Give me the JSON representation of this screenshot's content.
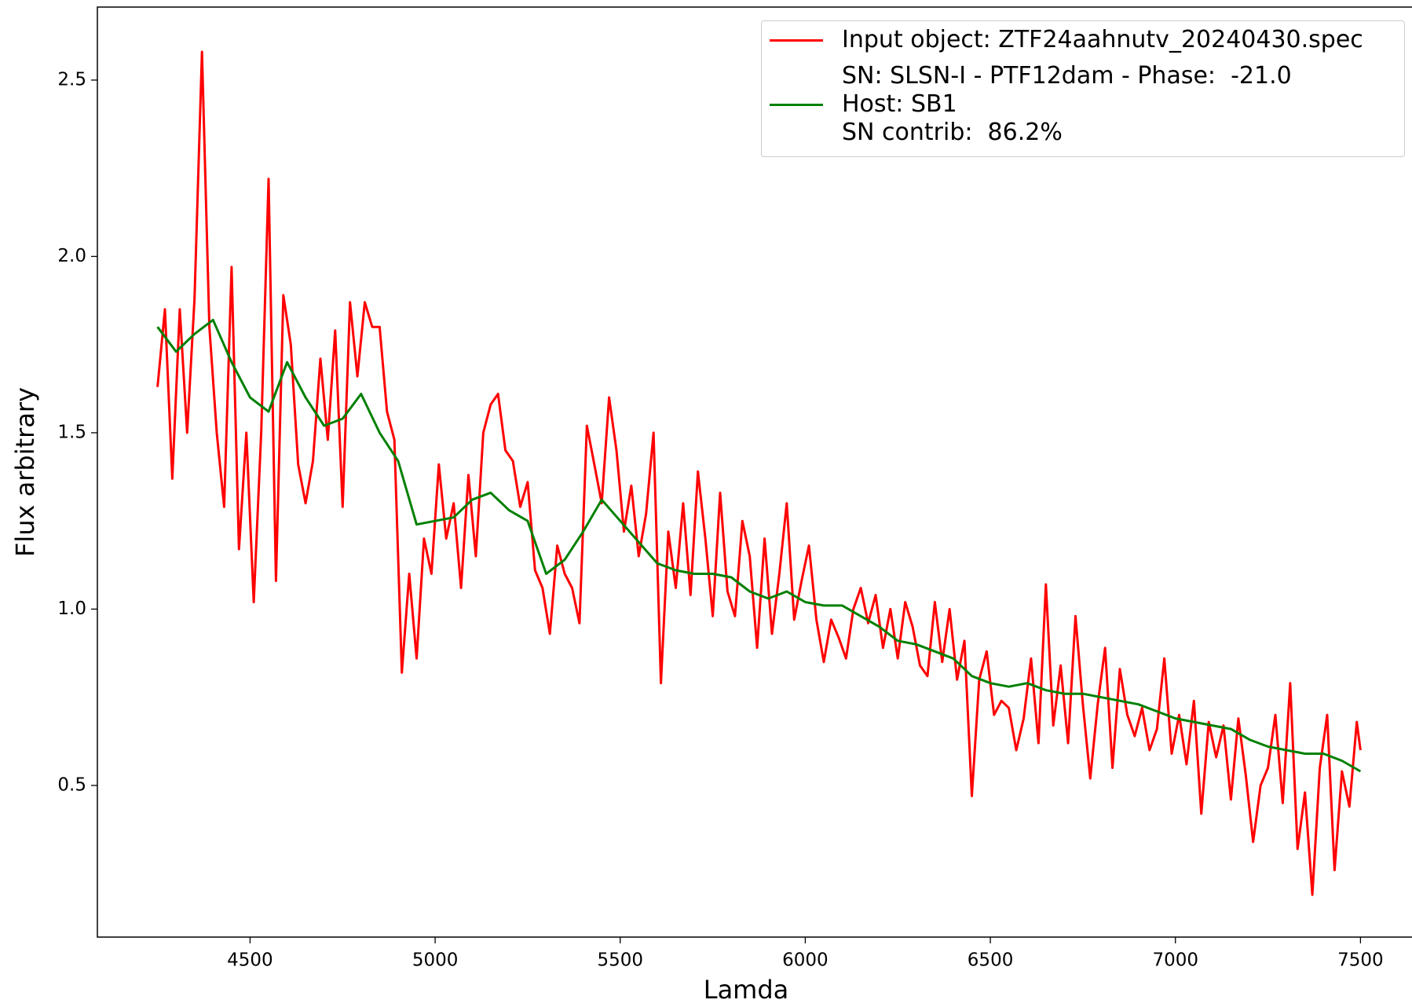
{
  "chart_data": {
    "type": "line",
    "xlabel": "Lamda",
    "ylabel": "Flux arbitrary",
    "xlim": [
      4087.5,
      7662.5
    ],
    "ylim": [
      0.07,
      2.707
    ],
    "xticks": [
      4500,
      5000,
      5500,
      6000,
      6500,
      7000,
      7500
    ],
    "yticks": [
      0.5,
      {
        "value": 1.0,
        "label": "1.0"
      },
      1.5,
      {
        "value": 2.0,
        "label": "2.0"
      },
      2.5
    ],
    "legend": "upper right",
    "series": [
      {
        "name": "Input object: ZTF24aahnutv_20240430.spec",
        "color": "#ff0000",
        "x": [
          4250,
          4270,
          4290,
          4310,
          4330,
          4350,
          4370,
          4390,
          4410,
          4430,
          4450,
          4470,
          4490,
          4510,
          4530,
          4550,
          4570,
          4590,
          4610,
          4630,
          4650,
          4670,
          4690,
          4710,
          4730,
          4750,
          4770,
          4790,
          4810,
          4830,
          4850,
          4870,
          4890,
          4910,
          4930,
          4950,
          4970,
          4990,
          5010,
          5030,
          5050,
          5070,
          5090,
          5110,
          5130,
          5150,
          5170,
          5190,
          5210,
          5230,
          5250,
          5270,
          5290,
          5310,
          5330,
          5350,
          5370,
          5390,
          5410,
          5430,
          5450,
          5470,
          5490,
          5510,
          5530,
          5550,
          5570,
          5590,
          5610,
          5630,
          5650,
          5670,
          5690,
          5710,
          5730,
          5750,
          5770,
          5790,
          5810,
          5830,
          5850,
          5870,
          5890,
          5910,
          5930,
          5950,
          5970,
          5990,
          6010,
          6030,
          6050,
          6070,
          6090,
          6110,
          6130,
          6150,
          6170,
          6190,
          6210,
          6230,
          6250,
          6270,
          6290,
          6310,
          6330,
          6350,
          6370,
          6390,
          6410,
          6430,
          6450,
          6470,
          6490,
          6510,
          6530,
          6550,
          6570,
          6590,
          6610,
          6630,
          6650,
          6670,
          6690,
          6710,
          6730,
          6750,
          6770,
          6790,
          6810,
          6830,
          6850,
          6870,
          6890,
          6910,
          6930,
          6950,
          6970,
          6990,
          7010,
          7030,
          7050,
          7070,
          7090,
          7110,
          7130,
          7150,
          7170,
          7190,
          7210,
          7230,
          7250,
          7270,
          7290,
          7310,
          7330,
          7350,
          7370,
          7390,
          7410,
          7430,
          7450,
          7470,
          7490,
          7500
        ],
        "values": [
          1.63,
          1.85,
          1.37,
          1.85,
          1.5,
          1.88,
          2.58,
          1.8,
          1.5,
          1.29,
          1.97,
          1.17,
          1.5,
          1.02,
          1.5,
          2.22,
          1.08,
          1.89,
          1.75,
          1.41,
          1.3,
          1.42,
          1.71,
          1.48,
          1.79,
          1.29,
          1.87,
          1.66,
          1.87,
          1.8,
          1.8,
          1.56,
          1.48,
          0.82,
          1.1,
          0.86,
          1.2,
          1.1,
          1.41,
          1.2,
          1.3,
          1.06,
          1.38,
          1.15,
          1.5,
          1.58,
          1.61,
          1.45,
          1.42,
          1.29,
          1.36,
          1.11,
          1.06,
          0.93,
          1.18,
          1.1,
          1.06,
          0.96,
          1.52,
          1.41,
          1.3,
          1.6,
          1.45,
          1.22,
          1.35,
          1.15,
          1.27,
          1.5,
          0.79,
          1.22,
          1.06,
          1.3,
          1.04,
          1.39,
          1.2,
          0.98,
          1.33,
          1.05,
          0.98,
          1.25,
          1.15,
          0.89,
          1.2,
          0.93,
          1.1,
          1.3,
          0.97,
          1.08,
          1.18,
          0.97,
          0.85,
          0.97,
          0.92,
          0.86,
          1.0,
          1.06,
          0.96,
          1.04,
          0.89,
          1.0,
          0.86,
          1.02,
          0.95,
          0.84,
          0.81,
          1.02,
          0.85,
          1.0,
          0.8,
          0.91,
          0.47,
          0.8,
          0.88,
          0.7,
          0.74,
          0.72,
          0.6,
          0.69,
          0.86,
          0.62,
          1.07,
          0.67,
          0.84,
          0.62,
          0.98,
          0.73,
          0.52,
          0.73,
          0.89,
          0.55,
          0.83,
          0.7,
          0.64,
          0.72,
          0.6,
          0.66,
          0.86,
          0.59,
          0.7,
          0.56,
          0.74,
          0.42,
          0.68,
          0.58,
          0.67,
          0.46,
          0.69,
          0.53,
          0.34,
          0.5,
          0.55,
          0.7,
          0.45,
          0.79,
          0.32,
          0.48,
          0.19,
          0.55,
          0.7,
          0.26,
          0.54,
          0.44,
          0.68,
          0.6
        ]
      },
      {
        "name": "SN: SLSN-I - PTF12dam - Phase:  -21.0\nHost: SB1\nSN contrib:  86.2%",
        "color": "#008000",
        "x": [
          4250,
          4300,
          4350,
          4400,
          4450,
          4500,
          4550,
          4600,
          4650,
          4700,
          4750,
          4800,
          4850,
          4900,
          4950,
          5000,
          5050,
          5100,
          5150,
          5200,
          5250,
          5300,
          5350,
          5400,
          5450,
          5500,
          5550,
          5600,
          5650,
          5700,
          5750,
          5800,
          5850,
          5900,
          5950,
          6000,
          6050,
          6100,
          6150,
          6200,
          6250,
          6300,
          6350,
          6400,
          6450,
          6500,
          6550,
          6600,
          6650,
          6700,
          6750,
          6800,
          6850,
          6900,
          6950,
          7000,
          7050,
          7100,
          7150,
          7200,
          7250,
          7300,
          7350,
          7400,
          7450,
          7500
        ],
        "values": [
          1.8,
          1.73,
          1.78,
          1.82,
          1.7,
          1.6,
          1.56,
          1.7,
          1.6,
          1.52,
          1.54,
          1.61,
          1.5,
          1.42,
          1.24,
          1.25,
          1.26,
          1.31,
          1.33,
          1.28,
          1.25,
          1.1,
          1.14,
          1.22,
          1.31,
          1.25,
          1.19,
          1.13,
          1.11,
          1.1,
          1.1,
          1.09,
          1.05,
          1.03,
          1.05,
          1.02,
          1.01,
          1.01,
          0.98,
          0.95,
          0.91,
          0.9,
          0.88,
          0.86,
          0.81,
          0.79,
          0.78,
          0.79,
          0.77,
          0.76,
          0.76,
          0.75,
          0.74,
          0.73,
          0.71,
          0.69,
          0.68,
          0.67,
          0.66,
          0.63,
          0.61,
          0.6,
          0.59,
          0.59,
          0.57,
          0.54
        ]
      }
    ]
  }
}
